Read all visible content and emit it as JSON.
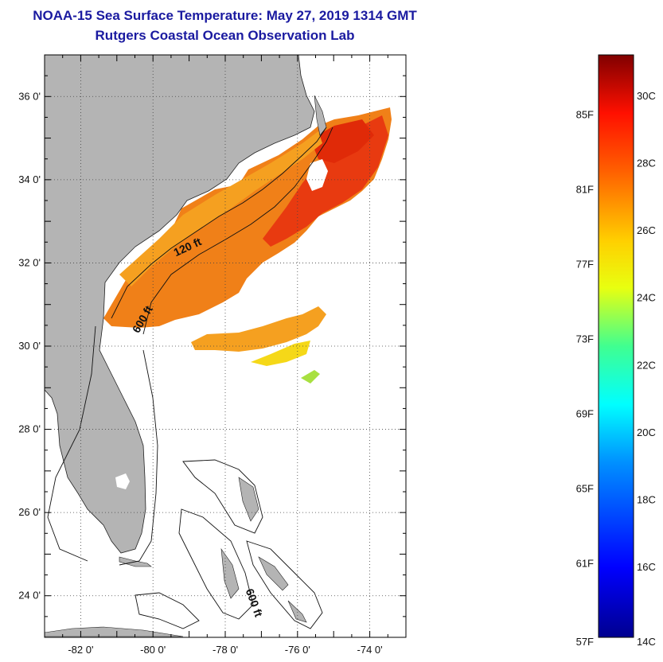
{
  "header": {
    "title": "NOAA-15 Sea Surface Temperature:  May 27, 2019 1314 GMT",
    "subtitle": "Rutgers Coastal Ocean Observation Lab"
  },
  "map": {
    "lon_range": [
      -83,
      -73
    ],
    "lat_range": [
      23,
      37
    ],
    "x_ticks": [
      {
        "value": -82,
        "label": "-82 0'"
      },
      {
        "value": -80,
        "label": "-80 0'"
      },
      {
        "value": -78,
        "label": "-78 0'"
      },
      {
        "value": -76,
        "label": "-76 0'"
      },
      {
        "value": -74,
        "label": "-74 0'"
      }
    ],
    "y_ticks": [
      {
        "value": 24,
        "label": "24 0'"
      },
      {
        "value": 26,
        "label": "26 0'"
      },
      {
        "value": 28,
        "label": "28 0'"
      },
      {
        "value": 30,
        "label": "30 0'"
      },
      {
        "value": 32,
        "label": "32 0'"
      },
      {
        "value": 34,
        "label": "34 0'"
      },
      {
        "value": 36,
        "label": "36 0'"
      }
    ],
    "contour_labels": [
      {
        "text": "120 ft",
        "lon": -79.0,
        "lat": 32.3,
        "angle": -25
      },
      {
        "text": "600 ft",
        "lon": -80.2,
        "lat": 30.6,
        "angle": -60
      },
      {
        "text": "600 ft",
        "lon": -77.3,
        "lat": 23.8,
        "angle": 70
      }
    ],
    "colors": {
      "land": "#b4b4b4",
      "sst_main": "#f08018",
      "sst_warm": "#e83a10",
      "sst_cool": "#f5d818"
    }
  },
  "colorbar": {
    "celsius": [
      {
        "value": 14,
        "label": "14C"
      },
      {
        "value": 16,
        "label": "16C"
      },
      {
        "value": 18,
        "label": "18C"
      },
      {
        "value": 20,
        "label": "20C"
      },
      {
        "value": 22,
        "label": "22C"
      },
      {
        "value": 24,
        "label": "24C"
      },
      {
        "value": 26,
        "label": "26C"
      },
      {
        "value": 28,
        "label": "28C"
      },
      {
        "value": 30,
        "label": "30C"
      }
    ],
    "fahrenheit": [
      {
        "value": 57,
        "label": "57F"
      },
      {
        "value": 61,
        "label": "61F"
      },
      {
        "value": 65,
        "label": "65F"
      },
      {
        "value": 69,
        "label": "69F"
      },
      {
        "value": 73,
        "label": "73F"
      },
      {
        "value": 77,
        "label": "77F"
      },
      {
        "value": 81,
        "label": "81F"
      },
      {
        "value": 85,
        "label": "85F"
      }
    ]
  }
}
